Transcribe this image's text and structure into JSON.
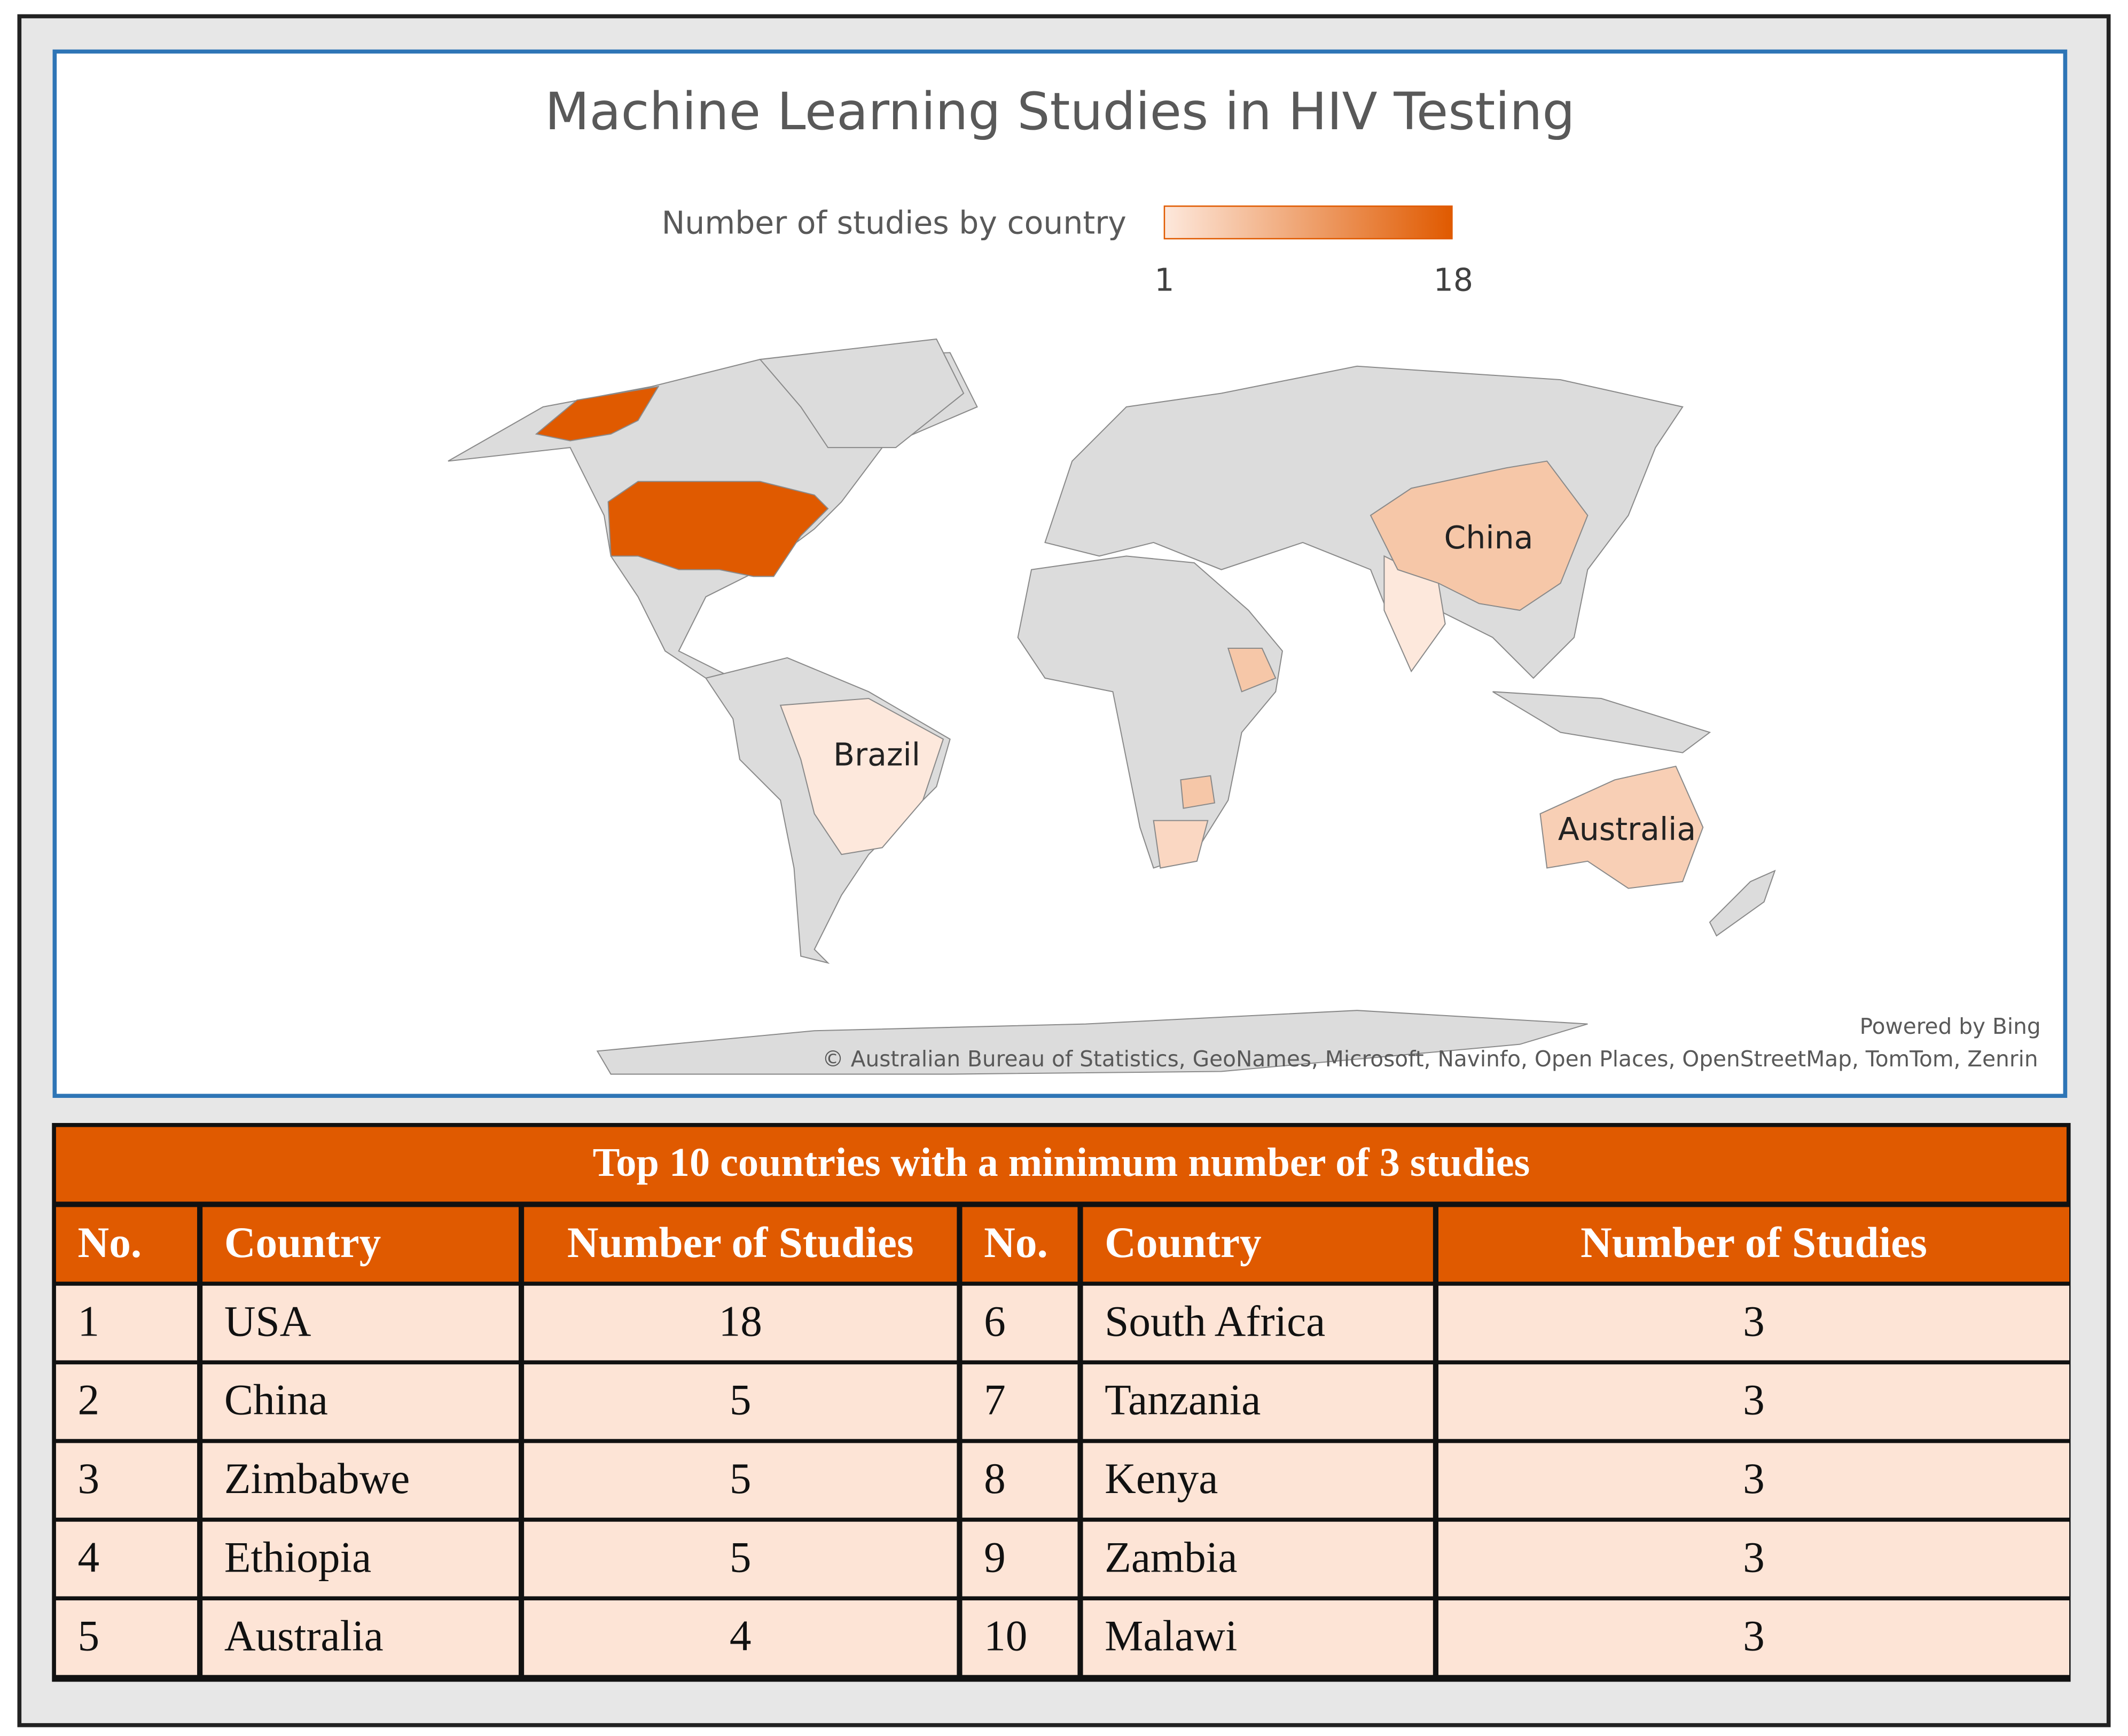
{
  "map": {
    "title": "Machine Learning Studies in HIV Testing",
    "legend": {
      "label": "Number of studies by country",
      "min": 1,
      "max": 18,
      "low_color": "#fde8dc",
      "high_color": "#e05a00"
    },
    "labels": [
      "China",
      "Brazil",
      "Australia"
    ],
    "credit": "Powered by Bing",
    "attribution": "© Australian Bureau of Statistics, GeoNames, Microsoft, Navinfo, Open Places, OpenStreetMap, TomTom, Zenrin"
  },
  "table": {
    "title": "Top 10 countries with a minimum number of 3 studies",
    "headers": [
      "No.",
      "Country",
      "Number of Studies",
      "No.",
      "Country",
      "Number of Studies"
    ],
    "rows": [
      [
        1,
        "USA",
        18,
        6,
        "South Africa",
        3
      ],
      [
        2,
        "China",
        5,
        7,
        "Tanzania",
        3
      ],
      [
        3,
        "Zimbabwe",
        5,
        8,
        "Kenya",
        3
      ],
      [
        4,
        "Ethiopia",
        5,
        9,
        "Zambia",
        3
      ],
      [
        5,
        "Australia",
        4,
        10,
        "Malawi",
        3
      ]
    ]
  }
}
